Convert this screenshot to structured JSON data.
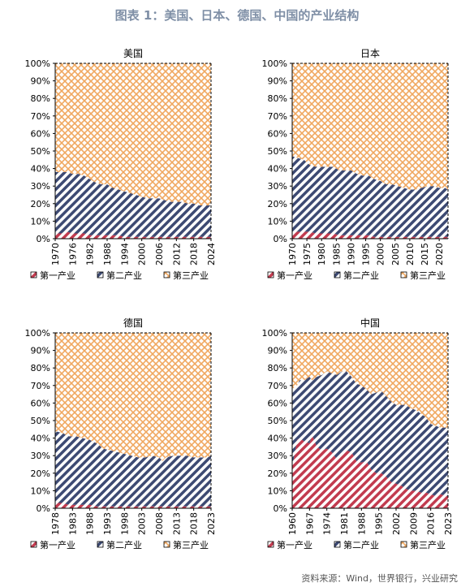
{
  "figure_title": "图表 1：美国、日本、德国、中国的产业结构",
  "source_note": "资料来源：Wind，世界银行，兴业研究",
  "colors": {
    "primary": "#c23b4f",
    "secondary": "#3d4a73",
    "tertiary": "#f0a860",
    "title": "#7f8fa6"
  },
  "y_ticks": [
    "0%",
    "10%",
    "20%",
    "30%",
    "40%",
    "50%",
    "60%",
    "70%",
    "80%",
    "90%",
    "100%"
  ],
  "legend": [
    "第一产业",
    "第二产业",
    "第三产业"
  ],
  "chart_data": [
    {
      "type": "area",
      "stacked": true,
      "title": "美国",
      "x_ticks": [
        "1970",
        "1976",
        "1982",
        "1988",
        "1994",
        "2000",
        "2006",
        "2012",
        "2018",
        "2024"
      ],
      "ylim": [
        0,
        100
      ],
      "x": [
        1970,
        1972,
        1974,
        1976,
        1978,
        1980,
        1982,
        1984,
        1986,
        1988,
        1990,
        1992,
        1994,
        1996,
        1998,
        2000,
        2002,
        2004,
        2006,
        2008,
        2010,
        2012,
        2014,
        2016,
        2018,
        2020,
        2022,
        2024
      ],
      "series": [
        {
          "name": "第一产业",
          "values": [
            3,
            3,
            4,
            3,
            3,
            3,
            2,
            2,
            2,
            2,
            2,
            2,
            1,
            1,
            1,
            1,
            1,
            1,
            1,
            1,
            1,
            1,
            1,
            1,
            1,
            1,
            1,
            1
          ]
        },
        {
          "name": "第二产业",
          "values": [
            35,
            35,
            34,
            34,
            34,
            33,
            32,
            30,
            29,
            29,
            27,
            26,
            26,
            25,
            24,
            23,
            22,
            22,
            22,
            21,
            20,
            20,
            20,
            19,
            19,
            18,
            18,
            18
          ]
        },
        {
          "name": "第三产业",
          "values": [
            62,
            62,
            62,
            63,
            63,
            64,
            66,
            68,
            69,
            69,
            71,
            72,
            73,
            74,
            75,
            76,
            77,
            77,
            77,
            78,
            79,
            79,
            79,
            80,
            80,
            81,
            81,
            81
          ]
        }
      ],
      "grid": false,
      "legend_position": "bottom"
    },
    {
      "type": "area",
      "stacked": true,
      "title": "日本",
      "x_ticks": [
        "1970",
        "1975",
        "1980",
        "1985",
        "1990",
        "1995",
        "2000",
        "2005",
        "2010",
        "2015",
        "2020"
      ],
      "ylim": [
        0,
        100
      ],
      "x": [
        1970,
        1972,
        1974,
        1976,
        1978,
        1980,
        1982,
        1984,
        1986,
        1988,
        1990,
        1992,
        1994,
        1996,
        1998,
        2000,
        2002,
        2004,
        2006,
        2008,
        2010,
        2012,
        2014,
        2016,
        2018,
        2020,
        2022,
        2023
      ],
      "series": [
        {
          "name": "第一产业",
          "values": [
            4,
            4,
            4,
            4,
            3,
            3,
            3,
            3,
            2,
            2,
            2,
            2,
            2,
            2,
            1,
            1,
            1,
            1,
            1,
            1,
            1,
            1,
            1,
            1,
            1,
            1,
            1,
            1
          ]
        },
        {
          "name": "第二产业",
          "values": [
            43,
            42,
            41,
            38,
            38,
            38,
            38,
            38,
            37,
            37,
            37,
            35,
            34,
            34,
            33,
            32,
            30,
            30,
            29,
            28,
            27,
            27,
            28,
            29,
            29,
            28,
            28,
            27
          ]
        },
        {
          "name": "第三产业",
          "values": [
            53,
            54,
            55,
            58,
            59,
            59,
            59,
            59,
            61,
            61,
            61,
            63,
            64,
            64,
            66,
            67,
            69,
            69,
            70,
            71,
            72,
            72,
            71,
            70,
            70,
            71,
            71,
            72
          ]
        }
      ],
      "grid": false,
      "legend_position": "bottom"
    },
    {
      "type": "area",
      "stacked": true,
      "title": "德国",
      "x_ticks": [
        "1978",
        "1983",
        "1988",
        "1993",
        "1998",
        "2003",
        "2008",
        "2013",
        "2018",
        "2023"
      ],
      "ylim": [
        0,
        100
      ],
      "x": [
        1978,
        1980,
        1982,
        1984,
        1986,
        1988,
        1990,
        1992,
        1994,
        1996,
        1998,
        2000,
        2002,
        2004,
        2006,
        2008,
        2009,
        2010,
        2012,
        2014,
        2016,
        2018,
        2020,
        2022,
        2023
      ],
      "series": [
        {
          "name": "第一产业",
          "values": [
            3,
            3,
            2,
            2,
            2,
            2,
            1,
            1,
            1,
            1,
            1,
            1,
            1,
            1,
            1,
            1,
            1,
            1,
            1,
            1,
            1,
            1,
            1,
            1,
            1
          ]
        },
        {
          "name": "第二产业",
          "values": [
            41,
            40,
            39,
            39,
            38,
            37,
            36,
            33,
            32,
            31,
            30,
            29,
            28,
            28,
            29,
            28,
            26,
            28,
            29,
            29,
            29,
            28,
            28,
            28,
            29
          ]
        },
        {
          "name": "第三产业",
          "values": [
            56,
            57,
            59,
            59,
            60,
            61,
            63,
            66,
            67,
            68,
            69,
            70,
            71,
            71,
            70,
            71,
            73,
            71,
            70,
            70,
            70,
            71,
            71,
            71,
            70
          ]
        }
      ],
      "grid": false,
      "legend_position": "bottom"
    },
    {
      "type": "area",
      "stacked": true,
      "title": "中国",
      "x_ticks": [
        "1960",
        "1967",
        "1974",
        "1981",
        "1988",
        "1995",
        "2002",
        "2009",
        "2016",
        "2023"
      ],
      "ylim": [
        0,
        100
      ],
      "x": [
        1960,
        1962,
        1963,
        1965,
        1967,
        1968,
        1970,
        1972,
        1974,
        1976,
        1978,
        1980,
        1982,
        1984,
        1986,
        1988,
        1990,
        1992,
        1994,
        1996,
        1998,
        2000,
        2002,
        2004,
        2006,
        2008,
        2010,
        2012,
        2014,
        2016,
        2018,
        2020,
        2022,
        2023
      ],
      "series": [
        {
          "name": "第一产业",
          "values": [
            23,
            39,
            40,
            38,
            37,
            42,
            35,
            33,
            34,
            32,
            28,
            30,
            33,
            32,
            27,
            26,
            27,
            22,
            20,
            20,
            18,
            15,
            14,
            13,
            11,
            10,
            10,
            9,
            9,
            8,
            7,
            8,
            7,
            7
          ]
        },
        {
          "name": "第二产业",
          "values": [
            45,
            31,
            33,
            35,
            38,
            31,
            40,
            43,
            44,
            45,
            48,
            48,
            45,
            43,
            44,
            44,
            41,
            43,
            46,
            47,
            46,
            46,
            45,
            46,
            48,
            47,
            46,
            45,
            43,
            40,
            40,
            38,
            39,
            38
          ]
        },
        {
          "name": "第三产业",
          "values": [
            32,
            30,
            27,
            27,
            25,
            27,
            25,
            24,
            22,
            23,
            24,
            22,
            22,
            25,
            29,
            30,
            32,
            35,
            34,
            33,
            36,
            39,
            41,
            41,
            41,
            43,
            44,
            46,
            48,
            52,
            53,
            54,
            54,
            55
          ]
        }
      ],
      "grid": false,
      "legend_position": "bottom"
    }
  ]
}
